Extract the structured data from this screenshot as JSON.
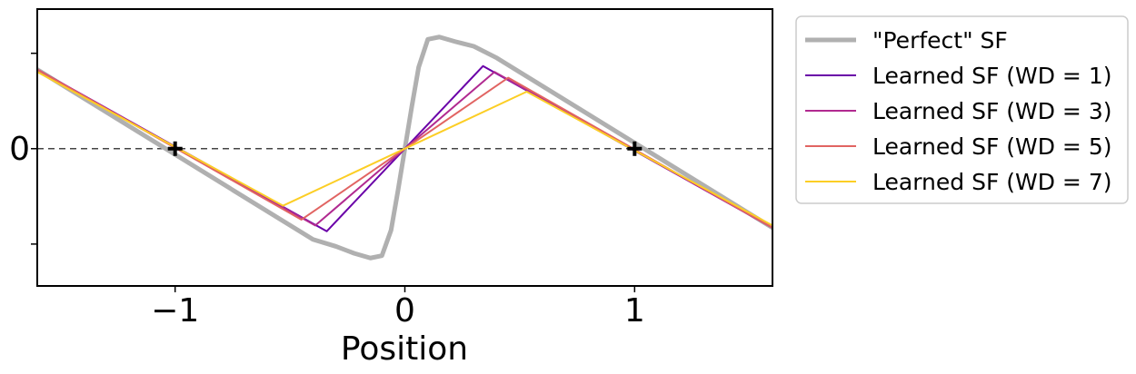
{
  "chart_data": {
    "type": "line",
    "xlabel": "Position",
    "ylabel": "",
    "xlim": [
      -1.6,
      1.6
    ],
    "ylim": [
      -0.59,
      0.6
    ],
    "x_ticks": [
      {
        "value": -1,
        "label": "−1"
      },
      {
        "value": 0,
        "label": "0"
      },
      {
        "value": 1,
        "label": "1"
      }
    ],
    "y_ticks": [
      {
        "value": -0.41,
        "label": ""
      },
      {
        "value": 0,
        "label": "0"
      },
      {
        "value": 0.41,
        "label": ""
      }
    ],
    "reference_line": {
      "y": 0,
      "style": "dashed"
    },
    "markers": [
      {
        "x": -1,
        "y": 0,
        "symbol": "+"
      },
      {
        "x": 1,
        "y": 0,
        "symbol": "+"
      }
    ],
    "legend_position": "outside right, top",
    "series": [
      {
        "name": "\"Perfect\" SF",
        "color": "#b0b0b0",
        "width": 5,
        "x": [
          -1.6,
          -0.4,
          -0.3,
          -0.22,
          -0.15,
          -0.1,
          -0.06,
          -0.03,
          0,
          0.03,
          0.06,
          0.1,
          0.15,
          0.22,
          0.3,
          0.4,
          1.6
        ],
        "y": [
          0.34,
          -0.39,
          -0.42,
          -0.45,
          -0.47,
          -0.46,
          -0.35,
          -0.18,
          0,
          0.18,
          0.35,
          0.47,
          0.48,
          0.46,
          0.44,
          0.39,
          -0.34
        ]
      },
      {
        "name": "Learned SF (WD = 1)",
        "color": "#6a00a8",
        "width": 2,
        "x": [
          -1.6,
          -0.34,
          0.34,
          1.6
        ],
        "y": [
          0.34,
          -0.355,
          0.355,
          -0.34
        ]
      },
      {
        "name": "Learned SF (WD = 3)",
        "color": "#b12a90",
        "width": 2,
        "x": [
          -1.6,
          -0.39,
          0.39,
          1.6
        ],
        "y": [
          0.34,
          -0.33,
          0.33,
          -0.34
        ]
      },
      {
        "name": "Learned SF (WD = 5)",
        "color": "#e16462",
        "width": 2,
        "x": [
          -1.6,
          -0.45,
          0.45,
          1.6
        ],
        "y": [
          0.34,
          -0.305,
          0.305,
          -0.34
        ]
      },
      {
        "name": "Learned SF (WD = 7)",
        "color": "#fcce25",
        "width": 2,
        "x": [
          -1.6,
          -0.53,
          0.53,
          1.6
        ],
        "y": [
          0.33,
          -0.245,
          0.245,
          -0.33
        ]
      }
    ]
  }
}
